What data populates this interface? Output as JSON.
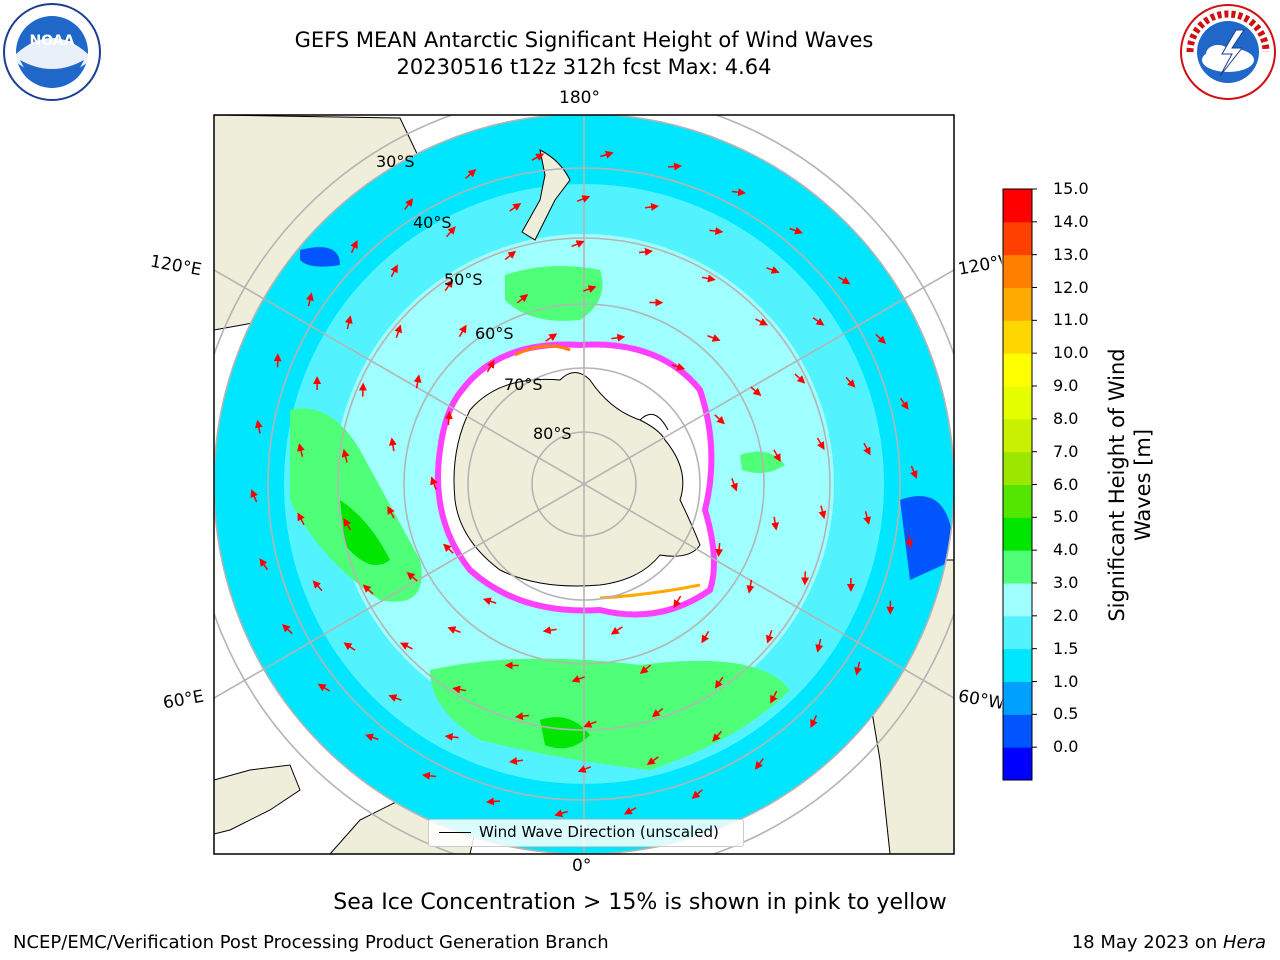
{
  "title_line1": "GEFS MEAN Antarctic Significant Height of Wind Waves",
  "title_line2": "20230516 t12z 312h fcst   Max: 4.64",
  "lon_labels": {
    "top": "180°",
    "bottom": "0°",
    "left_upper": "120°E",
    "left_lower": "60°E",
    "right_upper": "120°W",
    "right_lower": "60°W"
  },
  "lat_labels": [
    "30°S",
    "40°S",
    "50°S",
    "60°S",
    "70°S",
    "80°S"
  ],
  "colorbar": {
    "label_line1": "Significant Height of Wind",
    "label_line2": "Waves [m]",
    "ticks": [
      "15.0",
      "14.0",
      "13.0",
      "12.0",
      "11.0",
      "10.0",
      "9.0",
      "8.0",
      "7.0",
      "6.0",
      "5.0",
      "4.0",
      "3.0",
      "2.0",
      "1.5",
      "1.0",
      "0.5",
      "0.0"
    ],
    "colors": [
      "#0000ff",
      "#0055ff",
      "#00a0ff",
      "#00e6ff",
      "#52f3ff",
      "#a0ffff",
      "#50ff78",
      "#00e600",
      "#55e600",
      "#9ce600",
      "#c8f000",
      "#e6ff00",
      "#ffff00",
      "#ffd700",
      "#ffaa00",
      "#ff8000",
      "#ff4000",
      "#ff0000"
    ]
  },
  "legend_text": "Wind Wave Direction (unscaled)",
  "sea_ice_note": "Sea Ice Concentration > 15% is shown in pink to yellow",
  "footer_left": "NCEP/EMC/Verification Post Processing Product Generation Branch",
  "footer_right_date": "18 May 2023 on ",
  "footer_right_host": "Hera",
  "logos": {
    "left": {
      "icon": "noaa-logo",
      "text": "NOAA"
    },
    "right": {
      "icon": "nws-logo",
      "text": "NATIONAL WEATHER SERVICE"
    }
  },
  "colors": {
    "land": "#efeedb",
    "ocean_light": "#a0ffff",
    "ocean_mid": "#52f3ff",
    "ocean_cyan": "#00e6ff",
    "wave_green": "#50ff78",
    "arrow": "#ff0000",
    "ice": "#ff40ff"
  }
}
